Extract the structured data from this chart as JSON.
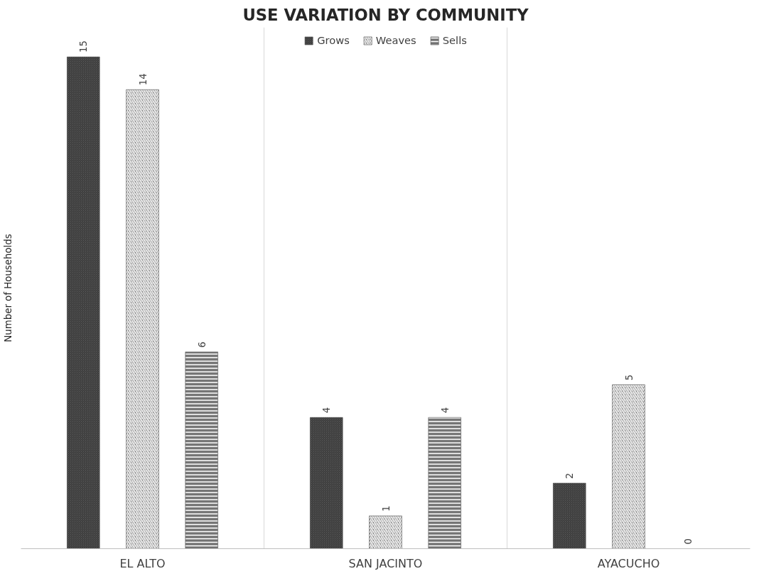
{
  "chart_data": {
    "type": "bar",
    "title": "USE VARIATION BY COMMUNITY",
    "ylabel": "Number of Households",
    "categories": [
      "EL ALTO",
      "SAN JACINTO",
      "AYACUCHO"
    ],
    "series": [
      {
        "name": "Grows",
        "color": "#595959",
        "values": [
          15,
          4,
          2
        ]
      },
      {
        "name": "Weaves",
        "color": "#595959",
        "values": [
          14,
          1,
          5
        ]
      },
      {
        "name": "Sells",
        "color": "#595959",
        "values": [
          6,
          4,
          0
        ]
      }
    ],
    "data_labels": true,
    "grid": "x",
    "legend": "top",
    "tick_labels": "x"
  }
}
